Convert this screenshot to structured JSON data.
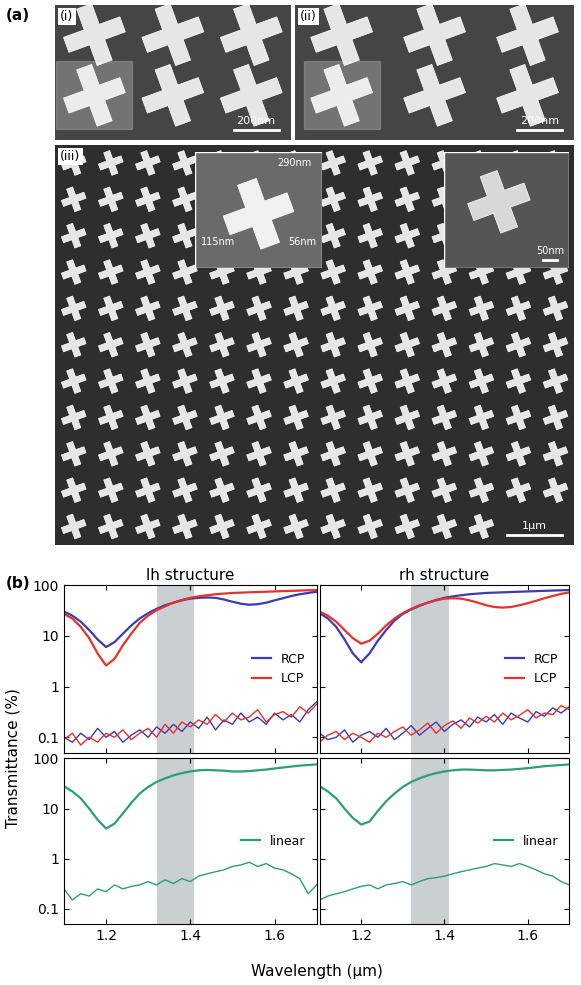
{
  "panel_a": {
    "label": "(a)",
    "images": [
      {
        "label": "(i)",
        "scale_bar": "200nm"
      },
      {
        "label": "(ii)",
        "scale_bar": "200nm"
      },
      {
        "label": "(iii)",
        "scale_bar": "1μm"
      }
    ],
    "insets": [
      {
        "dimensions": [
          "290nm",
          "115nm",
          "56nm"
        ]
      },
      {
        "scale_bar": "50nm"
      }
    ]
  },
  "panel_b": {
    "label": "(b)",
    "y_label": "Transmittance (%)",
    "x_label": "Wavelength (μm)"
  },
  "chart_data": [
    {
      "type": "line",
      "title": "lh structure",
      "x": [
        1.1,
        1.12,
        1.14,
        1.16,
        1.18,
        1.2,
        1.22,
        1.24,
        1.26,
        1.28,
        1.3,
        1.32,
        1.34,
        1.36,
        1.38,
        1.4,
        1.42,
        1.44,
        1.46,
        1.48,
        1.5,
        1.52,
        1.54,
        1.56,
        1.58,
        1.6,
        1.62,
        1.64,
        1.66,
        1.68,
        1.7
      ],
      "series": [
        {
          "name": "RCP",
          "color": "#3b3bb5",
          "values": [
            30,
            25,
            19,
            13,
            8.5,
            6,
            7.5,
            11,
            16,
            22,
            28,
            34,
            40,
            45,
            50,
            54,
            56,
            57,
            56,
            52,
            47,
            43,
            41,
            42,
            45,
            50,
            55,
            61,
            66,
            70,
            74
          ]
        },
        {
          "name": "LCP",
          "color": "#e5322b",
          "values": [
            27,
            22,
            15,
            9,
            4.5,
            2.6,
            3.5,
            6.5,
            11,
            18,
            25,
            32,
            38,
            45,
            51,
            56,
            60,
            63,
            66,
            68,
            70,
            71,
            72,
            73,
            74,
            75,
            76,
            77,
            78,
            79,
            80
          ]
        },
        {
          "color": "#3b3bb5",
          "values": [
            0.1,
            0.08,
            0.12,
            0.09,
            0.15,
            0.1,
            0.13,
            0.08,
            0.11,
            0.14,
            0.1,
            0.16,
            0.12,
            0.18,
            0.13,
            0.2,
            0.15,
            0.25,
            0.14,
            0.22,
            0.18,
            0.3,
            0.2,
            0.25,
            0.18,
            0.3,
            0.22,
            0.28,
            0.2,
            0.35,
            0.5
          ]
        },
        {
          "color": "#e5322b",
          "values": [
            0.09,
            0.12,
            0.07,
            0.1,
            0.08,
            0.12,
            0.1,
            0.14,
            0.09,
            0.12,
            0.15,
            0.1,
            0.18,
            0.12,
            0.2,
            0.16,
            0.22,
            0.18,
            0.28,
            0.2,
            0.3,
            0.22,
            0.25,
            0.35,
            0.2,
            0.28,
            0.32,
            0.25,
            0.4,
            0.3,
            0.45
          ]
        }
      ],
      "shaded_band": [
        1.32,
        1.41
      ],
      "xlim": [
        1.1,
        1.7
      ],
      "xticks": [
        1.2,
        1.4,
        1.6
      ],
      "ylim": [
        0.05,
        100
      ],
      "yticks": [
        0.1,
        1,
        10,
        100
      ],
      "log": "y",
      "legend": "center right",
      "tick_labels": "y"
    },
    {
      "type": "line",
      "title": "rh structure",
      "x": [
        1.1,
        1.12,
        1.14,
        1.16,
        1.18,
        1.2,
        1.22,
        1.24,
        1.26,
        1.28,
        1.3,
        1.32,
        1.34,
        1.36,
        1.38,
        1.4,
        1.42,
        1.44,
        1.46,
        1.48,
        1.5,
        1.52,
        1.54,
        1.56,
        1.58,
        1.6,
        1.62,
        1.64,
        1.66,
        1.68,
        1.7
      ],
      "series": [
        {
          "name": "RCP",
          "color": "#3b3bb5",
          "values": [
            28,
            22,
            15,
            8.5,
            4.5,
            3,
            4.5,
            8,
            13,
            20,
            27,
            33,
            39,
            45,
            51,
            56,
            60,
            63,
            66,
            68,
            70,
            71,
            72,
            73,
            74,
            75,
            76,
            77,
            78,
            79,
            80
          ]
        },
        {
          "name": "LCP",
          "color": "#e5322b",
          "values": [
            30,
            25,
            19,
            13,
            9,
            7,
            8,
            11,
            16,
            22,
            28,
            34,
            40,
            45,
            50,
            54,
            55,
            54,
            50,
            45,
            40,
            37,
            36,
            37,
            40,
            44,
            49,
            55,
            61,
            67,
            72
          ]
        },
        {
          "color": "#3b3bb5",
          "values": [
            0.12,
            0.09,
            0.1,
            0.14,
            0.08,
            0.11,
            0.13,
            0.1,
            0.15,
            0.09,
            0.12,
            0.17,
            0.11,
            0.15,
            0.2,
            0.13,
            0.18,
            0.22,
            0.16,
            0.25,
            0.2,
            0.28,
            0.18,
            0.3,
            0.24,
            0.2,
            0.32,
            0.26,
            0.38,
            0.3,
            0.4
          ]
        },
        {
          "color": "#e5322b",
          "values": [
            0.08,
            0.11,
            0.13,
            0.09,
            0.12,
            0.1,
            0.08,
            0.12,
            0.1,
            0.13,
            0.16,
            0.11,
            0.14,
            0.19,
            0.12,
            0.17,
            0.21,
            0.15,
            0.24,
            0.19,
            0.26,
            0.2,
            0.3,
            0.22,
            0.27,
            0.35,
            0.24,
            0.3,
            0.28,
            0.42,
            0.35
          ]
        }
      ],
      "shaded_band": [
        1.32,
        1.41
      ],
      "xlim": [
        1.1,
        1.7
      ],
      "xticks": [
        1.2,
        1.4,
        1.6
      ],
      "ylim": [
        0.05,
        100
      ],
      "yticks": [
        0.1,
        1,
        10,
        100
      ],
      "log": "y",
      "legend": "center right",
      "tick_labels": false
    },
    {
      "type": "line",
      "x": [
        1.1,
        1.12,
        1.14,
        1.16,
        1.18,
        1.2,
        1.22,
        1.24,
        1.26,
        1.28,
        1.3,
        1.32,
        1.34,
        1.36,
        1.38,
        1.4,
        1.42,
        1.44,
        1.46,
        1.48,
        1.5,
        1.52,
        1.54,
        1.56,
        1.58,
        1.6,
        1.62,
        1.64,
        1.66,
        1.68,
        1.7
      ],
      "series": [
        {
          "name": "linear",
          "color": "#2a9f78",
          "values": [
            28,
            22,
            16,
            10,
            6,
            4,
            5,
            8,
            13,
            20,
            27,
            34,
            40,
            46,
            51,
            55,
            58,
            59,
            58,
            57,
            55,
            55,
            56,
            58,
            60,
            63,
            66,
            69,
            72,
            74,
            76
          ]
        },
        {
          "color": "#2a9f78",
          "values": [
            0.25,
            0.15,
            0.2,
            0.18,
            0.25,
            0.22,
            0.3,
            0.25,
            0.28,
            0.3,
            0.35,
            0.3,
            0.38,
            0.32,
            0.4,
            0.35,
            0.45,
            0.5,
            0.55,
            0.6,
            0.7,
            0.75,
            0.85,
            0.7,
            0.8,
            0.65,
            0.6,
            0.5,
            0.4,
            0.2,
            0.3
          ]
        }
      ],
      "shaded_band": [
        1.32,
        1.41
      ],
      "xlim": [
        1.1,
        1.7
      ],
      "xticks": [
        1.2,
        1.4,
        1.6
      ],
      "ylim": [
        0.05,
        100
      ],
      "yticks": [
        0.1,
        1,
        10,
        100
      ],
      "log": "y",
      "legend": "center right",
      "tick_labels": true
    },
    {
      "type": "line",
      "x": [
        1.1,
        1.12,
        1.14,
        1.16,
        1.18,
        1.2,
        1.22,
        1.24,
        1.26,
        1.28,
        1.3,
        1.32,
        1.34,
        1.36,
        1.38,
        1.4,
        1.42,
        1.44,
        1.46,
        1.48,
        1.5,
        1.52,
        1.54,
        1.56,
        1.58,
        1.6,
        1.62,
        1.64,
        1.66,
        1.68,
        1.7
      ],
      "series": [
        {
          "name": "linear",
          "color": "#2a9f78",
          "values": [
            28,
            22,
            16,
            10,
            6.5,
            4.8,
            5.5,
            9,
            14,
            20,
            27,
            34,
            40,
            46,
            51,
            55,
            58,
            60,
            60,
            59,
            58,
            58,
            59,
            60,
            62,
            64,
            67,
            70,
            72,
            74,
            76
          ]
        },
        {
          "color": "#2a9f78",
          "values": [
            0.15,
            0.18,
            0.2,
            0.22,
            0.25,
            0.28,
            0.3,
            0.25,
            0.3,
            0.32,
            0.35,
            0.3,
            0.35,
            0.4,
            0.42,
            0.45,
            0.5,
            0.55,
            0.6,
            0.65,
            0.7,
            0.8,
            0.75,
            0.7,
            0.8,
            0.7,
            0.6,
            0.5,
            0.45,
            0.35,
            0.3
          ]
        }
      ],
      "shaded_band": [
        1.32,
        1.41
      ],
      "xlim": [
        1.1,
        1.7
      ],
      "xticks": [
        1.2,
        1.4,
        1.6
      ],
      "ylim": [
        0.05,
        100
      ],
      "yticks": [
        0.1,
        1,
        10,
        100
      ],
      "log": "y",
      "legend": "center right",
      "tick_labels": "x"
    }
  ]
}
